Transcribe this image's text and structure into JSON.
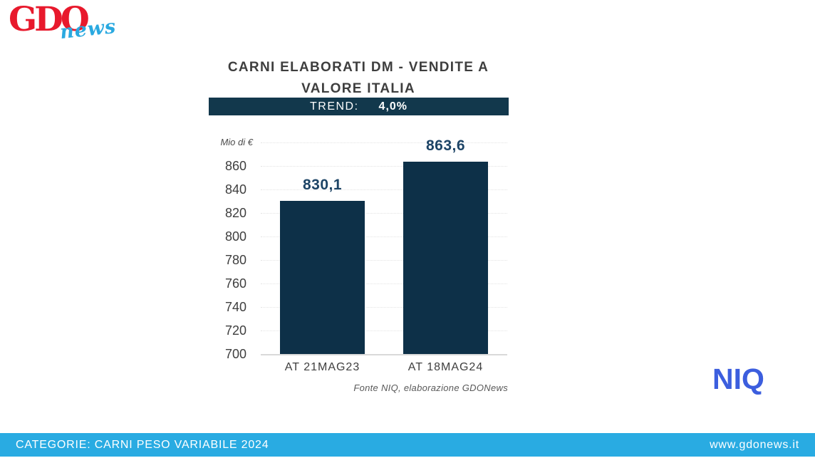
{
  "header": {
    "logo_gdo": "GDO",
    "logo_news": "news"
  },
  "chart": {
    "title_line1": "CARNI ELABORATI DM - VENDITE A",
    "title_line2": "VALORE ITALIA",
    "trend_label": "TREND:",
    "trend_value": "4,0%",
    "unit_label": "Mio di €",
    "footnote": "Fonte NIQ, elaborazione GDONews"
  },
  "chart_data": {
    "type": "bar",
    "title": "CARNI ELABORATI DM - VENDITE A VALORE ITALIA",
    "subtitle_trend": "TREND: 4,0%",
    "categories": [
      "AT 21MAG23",
      "AT 18MAG24"
    ],
    "values": [
      830.1,
      863.6
    ],
    "value_labels": [
      "830,1",
      "863,6"
    ],
    "xlabel": "",
    "ylabel": "Mio di €",
    "ylim": [
      700,
      880
    ],
    "yticks": [
      700,
      720,
      740,
      760,
      780,
      800,
      820,
      840,
      860
    ],
    "grid": true,
    "legend": "none",
    "bar_color": "#0d3048",
    "label_color": "#1d4466",
    "source_note": "Fonte NIQ, elaborazione GDONews"
  },
  "niq_logo": "NIQ",
  "footer": {
    "left": "CATEGORIE: CARNI PESO VARIABILE 2024",
    "right": "www.gdonews.it",
    "bg_color": "#29abe2"
  }
}
